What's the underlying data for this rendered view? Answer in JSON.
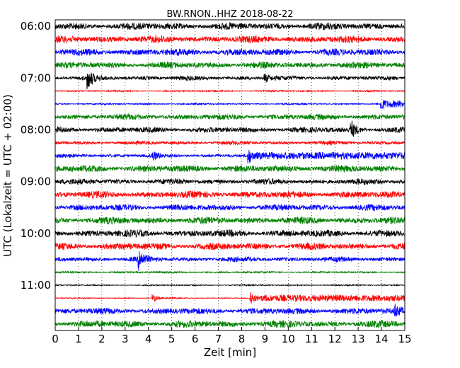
{
  "chart_data": {
    "type": "line",
    "title": "BW.RNON..HHZ 2018-08-22",
    "xlabel": "Zeit  [min]",
    "ylabel": "UTC (Lokalzeit = UTC + 02:00)",
    "xlim": [
      0,
      15
    ],
    "x_ticks": [
      "0",
      "1",
      "2",
      "3",
      "4",
      "5",
      "6",
      "7",
      "8",
      "9",
      "10",
      "11",
      "12",
      "13",
      "14",
      "15"
    ],
    "y_ticks": [
      {
        "label": "06:00",
        "row": 0
      },
      {
        "label": "07:00",
        "row": 4
      },
      {
        "label": "08:00",
        "row": 8
      },
      {
        "label": "09:00",
        "row": 12
      },
      {
        "label": "10:00",
        "row": 16
      },
      {
        "label": "11:00",
        "row": 20
      }
    ],
    "grid": {
      "vertical_dotted": true
    },
    "trace_colors": [
      "#000000",
      "#ff0000",
      "#0000ff",
      "#008000"
    ],
    "traces": [
      {
        "start": "06:00",
        "amplitude": 0.55
      },
      {
        "start": "06:15",
        "amplitude": 0.55
      },
      {
        "start": "06:30",
        "amplitude": 0.55
      },
      {
        "start": "06:45",
        "amplitude": 0.5
      },
      {
        "start": "07:00",
        "amplitude": 0.35,
        "events": [
          {
            "t": 1.4,
            "amp": 1.6
          },
          {
            "t": 9.0,
            "amp": 0.6
          }
        ]
      },
      {
        "start": "07:15",
        "amplitude": 0.12
      },
      {
        "start": "07:30",
        "amplitude": 0.12,
        "events": [
          {
            "t": 14.0,
            "amp": 1.2,
            "step": 0.55
          }
        ]
      },
      {
        "start": "07:45",
        "amplitude": 0.45
      },
      {
        "start": "08:00",
        "amplitude": 0.45,
        "events": [
          {
            "t": 12.7,
            "amp": 1.3
          }
        ]
      },
      {
        "start": "08:15",
        "amplitude": 0.3
      },
      {
        "start": "08:30",
        "amplitude": 0.3,
        "events": [
          {
            "t": 4.2,
            "amp": 0.6
          },
          {
            "t": 8.3,
            "amp": 1.1,
            "step": 0.55
          }
        ]
      },
      {
        "start": "08:45",
        "amplitude": 0.55
      },
      {
        "start": "09:00",
        "amplitude": 0.45
      },
      {
        "start": "09:15",
        "amplitude": 0.55
      },
      {
        "start": "09:30",
        "amplitude": 0.5
      },
      {
        "start": "09:45",
        "amplitude": 0.55
      },
      {
        "start": "10:00",
        "amplitude": 0.55
      },
      {
        "start": "10:15",
        "amplitude": 0.55
      },
      {
        "start": "10:30",
        "amplitude": 0.4,
        "events": [
          {
            "t": 3.6,
            "amp": 1.5
          }
        ]
      },
      {
        "start": "10:45",
        "amplitude": 0.15
      },
      {
        "start": "11:00",
        "amplitude": 0.1
      },
      {
        "start": "11:15",
        "amplitude": 0.08,
        "events": [
          {
            "t": 4.2,
            "amp": 0.7
          },
          {
            "t": 8.4,
            "amp": 1.2,
            "step": 0.5
          }
        ]
      },
      {
        "start": "11:30",
        "amplitude": 0.5,
        "events": [
          {
            "t": 14.6,
            "amp": 0.8
          }
        ]
      },
      {
        "start": "11:45",
        "amplitude": 0.55
      }
    ]
  }
}
